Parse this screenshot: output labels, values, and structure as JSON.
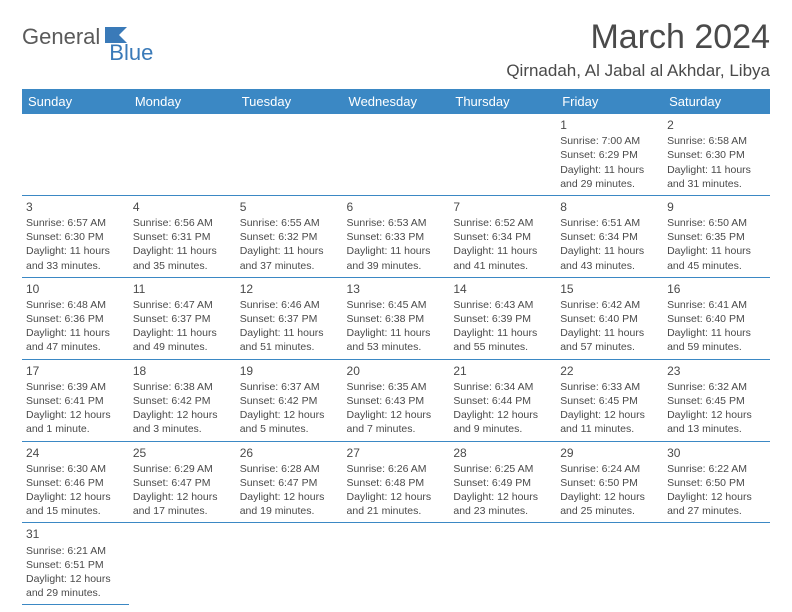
{
  "brand": {
    "part1": "General",
    "part2": "Blue"
  },
  "title": "March 2024",
  "location": "Qirnadah, Al Jabal al Akhdar, Libya",
  "colors": {
    "header_bg": "#3b88c4",
    "header_text": "#ffffff",
    "border": "#3b88c4",
    "text": "#4a4a4a",
    "brand_blue": "#3a7ab8",
    "brand_gray": "#5a5a5a",
    "background": "#ffffff"
  },
  "typography": {
    "title_fontsize": 34,
    "location_fontsize": 17,
    "dayheader_fontsize": 13,
    "cell_fontsize": 10.5,
    "daynum_fontsize": 12
  },
  "day_headers": [
    "Sunday",
    "Monday",
    "Tuesday",
    "Wednesday",
    "Thursday",
    "Friday",
    "Saturday"
  ],
  "weeks": [
    [
      null,
      null,
      null,
      null,
      null,
      {
        "n": "1",
        "sr": "7:00 AM",
        "ss": "6:29 PM",
        "dl": "11 hours and 29 minutes."
      },
      {
        "n": "2",
        "sr": "6:58 AM",
        "ss": "6:30 PM",
        "dl": "11 hours and 31 minutes."
      }
    ],
    [
      {
        "n": "3",
        "sr": "6:57 AM",
        "ss": "6:30 PM",
        "dl": "11 hours and 33 minutes."
      },
      {
        "n": "4",
        "sr": "6:56 AM",
        "ss": "6:31 PM",
        "dl": "11 hours and 35 minutes."
      },
      {
        "n": "5",
        "sr": "6:55 AM",
        "ss": "6:32 PM",
        "dl": "11 hours and 37 minutes."
      },
      {
        "n": "6",
        "sr": "6:53 AM",
        "ss": "6:33 PM",
        "dl": "11 hours and 39 minutes."
      },
      {
        "n": "7",
        "sr": "6:52 AM",
        "ss": "6:34 PM",
        "dl": "11 hours and 41 minutes."
      },
      {
        "n": "8",
        "sr": "6:51 AM",
        "ss": "6:34 PM",
        "dl": "11 hours and 43 minutes."
      },
      {
        "n": "9",
        "sr": "6:50 AM",
        "ss": "6:35 PM",
        "dl": "11 hours and 45 minutes."
      }
    ],
    [
      {
        "n": "10",
        "sr": "6:48 AM",
        "ss": "6:36 PM",
        "dl": "11 hours and 47 minutes."
      },
      {
        "n": "11",
        "sr": "6:47 AM",
        "ss": "6:37 PM",
        "dl": "11 hours and 49 minutes."
      },
      {
        "n": "12",
        "sr": "6:46 AM",
        "ss": "6:37 PM",
        "dl": "11 hours and 51 minutes."
      },
      {
        "n": "13",
        "sr": "6:45 AM",
        "ss": "6:38 PM",
        "dl": "11 hours and 53 minutes."
      },
      {
        "n": "14",
        "sr": "6:43 AM",
        "ss": "6:39 PM",
        "dl": "11 hours and 55 minutes."
      },
      {
        "n": "15",
        "sr": "6:42 AM",
        "ss": "6:40 PM",
        "dl": "11 hours and 57 minutes."
      },
      {
        "n": "16",
        "sr": "6:41 AM",
        "ss": "6:40 PM",
        "dl": "11 hours and 59 minutes."
      }
    ],
    [
      {
        "n": "17",
        "sr": "6:39 AM",
        "ss": "6:41 PM",
        "dl": "12 hours and 1 minute."
      },
      {
        "n": "18",
        "sr": "6:38 AM",
        "ss": "6:42 PM",
        "dl": "12 hours and 3 minutes."
      },
      {
        "n": "19",
        "sr": "6:37 AM",
        "ss": "6:42 PM",
        "dl": "12 hours and 5 minutes."
      },
      {
        "n": "20",
        "sr": "6:35 AM",
        "ss": "6:43 PM",
        "dl": "12 hours and 7 minutes."
      },
      {
        "n": "21",
        "sr": "6:34 AM",
        "ss": "6:44 PM",
        "dl": "12 hours and 9 minutes."
      },
      {
        "n": "22",
        "sr": "6:33 AM",
        "ss": "6:45 PM",
        "dl": "12 hours and 11 minutes."
      },
      {
        "n": "23",
        "sr": "6:32 AM",
        "ss": "6:45 PM",
        "dl": "12 hours and 13 minutes."
      }
    ],
    [
      {
        "n": "24",
        "sr": "6:30 AM",
        "ss": "6:46 PM",
        "dl": "12 hours and 15 minutes."
      },
      {
        "n": "25",
        "sr": "6:29 AM",
        "ss": "6:47 PM",
        "dl": "12 hours and 17 minutes."
      },
      {
        "n": "26",
        "sr": "6:28 AM",
        "ss": "6:47 PM",
        "dl": "12 hours and 19 minutes."
      },
      {
        "n": "27",
        "sr": "6:26 AM",
        "ss": "6:48 PM",
        "dl": "12 hours and 21 minutes."
      },
      {
        "n": "28",
        "sr": "6:25 AM",
        "ss": "6:49 PM",
        "dl": "12 hours and 23 minutes."
      },
      {
        "n": "29",
        "sr": "6:24 AM",
        "ss": "6:50 PM",
        "dl": "12 hours and 25 minutes."
      },
      {
        "n": "30",
        "sr": "6:22 AM",
        "ss": "6:50 PM",
        "dl": "12 hours and 27 minutes."
      }
    ],
    [
      {
        "n": "31",
        "sr": "6:21 AM",
        "ss": "6:51 PM",
        "dl": "12 hours and 29 minutes."
      },
      null,
      null,
      null,
      null,
      null,
      null
    ]
  ],
  "labels": {
    "sunrise": "Sunrise:",
    "sunset": "Sunset:",
    "daylight": "Daylight:"
  }
}
